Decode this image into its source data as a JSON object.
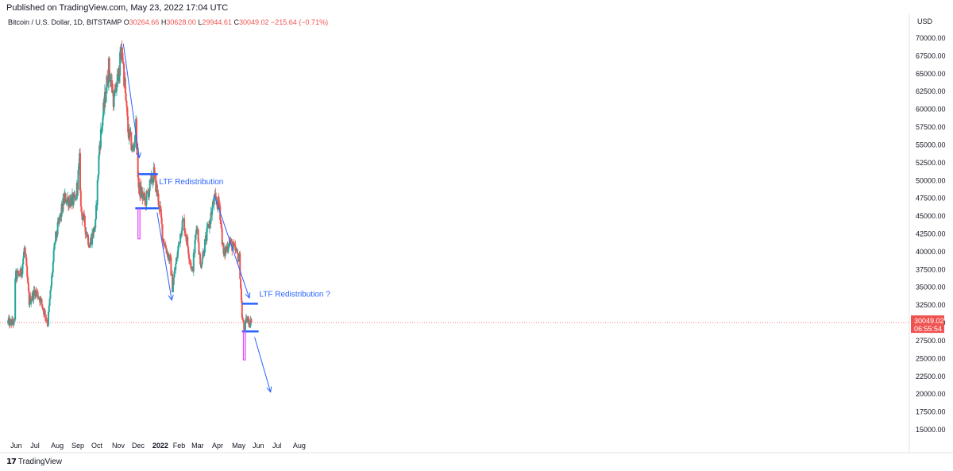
{
  "header": {
    "published": "Published on TradingView.com, May 23, 2022 17:04 UTC",
    "symbol": "Bitcoin / U.S. Dollar, 1D, BITSTAMP",
    "open_label": "O",
    "open": "30264.66",
    "high_label": "H",
    "high": "30628.00",
    "low_label": "L",
    "low": "29944.61",
    "close_label": "C",
    "close": "30049.02",
    "change": "−215.64 (−0.71%)"
  },
  "currency": "USD",
  "footer": {
    "brand": "TradingView"
  },
  "colors": {
    "up": "#26a69a",
    "down": "#ef5350",
    "annotation": "#2962ff",
    "box": "#e040fb",
    "price_badge": "#ef5350"
  },
  "chart_data": {
    "type": "candlestick",
    "x_labels": [
      "Jun",
      "Jul",
      "Aug",
      "Sep",
      "Oct",
      "Nov",
      "Dec",
      "2022",
      "Feb",
      "Mar",
      "Apr",
      "May",
      "Jun",
      "Jul",
      "Aug"
    ],
    "y_ticks": [
      "70000.00",
      "67500.00",
      "65000.00",
      "62500.00",
      "60000.00",
      "57500.00",
      "55000.00",
      "52500.00",
      "50000.00",
      "47500.00",
      "45000.00",
      "42500.00",
      "40000.00",
      "37500.00",
      "35000.00",
      "32500.00",
      "30000.00",
      "27500.00",
      "25000.00",
      "22500.00",
      "20000.00",
      "17500.00",
      "15000.00"
    ],
    "ylim": [
      13500,
      70500
    ],
    "last_price": "30049.02",
    "countdown": "06:55:54",
    "anchors": [
      [
        "2021-06-01",
        36500
      ],
      [
        "2021-06-10",
        37000
      ],
      [
        "2021-06-15",
        40500
      ],
      [
        "2021-06-22",
        33000
      ],
      [
        "2021-07-01",
        34500
      ],
      [
        "2021-07-08",
        33500
      ],
      [
        "2021-07-20",
        30000
      ],
      [
        "2021-07-31",
        41500
      ],
      [
        "2021-08-14",
        47500
      ],
      [
        "2021-08-31",
        47000
      ],
      [
        "2021-09-06",
        52700
      ],
      [
        "2021-09-08",
        46000
      ],
      [
        "2021-09-21",
        41000
      ],
      [
        "2021-09-30",
        43800
      ],
      [
        "2021-10-06",
        55000
      ],
      [
        "2021-10-20",
        66000
      ],
      [
        "2021-10-28",
        61000
      ],
      [
        "2021-11-09",
        68500
      ],
      [
        "2021-11-18",
        57000
      ],
      [
        "2021-11-26",
        54000
      ],
      [
        "2021-11-30",
        57800
      ],
      [
        "2021-12-04",
        49000
      ],
      [
        "2021-12-14",
        47000
      ],
      [
        "2021-12-27",
        51000
      ],
      [
        "2022-01-05",
        46000
      ],
      [
        "2022-01-10",
        41800
      ],
      [
        "2022-01-21",
        38500
      ],
      [
        "2022-01-24",
        35000
      ],
      [
        "2022-02-07",
        43800
      ],
      [
        "2022-02-10",
        44200
      ],
      [
        "2022-02-23",
        37000
      ],
      [
        "2022-03-02",
        44200
      ],
      [
        "2022-03-07",
        38000
      ],
      [
        "2022-03-28",
        47300
      ],
      [
        "2022-04-05",
        46500
      ],
      [
        "2022-04-11",
        39500
      ],
      [
        "2022-04-20",
        41500
      ],
      [
        "2022-05-05",
        39000
      ],
      [
        "2022-05-09",
        31000
      ],
      [
        "2022-05-12",
        29000
      ],
      [
        "2022-05-16",
        30500
      ],
      [
        "2022-05-23",
        30049
      ]
    ],
    "trend_arrows": [
      {
        "from": [
          "2021-11-11",
          69200
        ],
        "to": [
          "2021-12-05",
          53200
        ]
      },
      {
        "from": [
          "2022-01-01",
          45500
        ],
        "to": [
          "2022-01-23",
          33200
        ]
      },
      {
        "from": [
          "2022-03-28",
          48000
        ],
        "to": [
          "2022-05-20",
          33500
        ]
      },
      {
        "from": [
          "2022-05-28",
          28000
        ],
        "to": [
          "2022-06-21",
          20300
        ]
      }
    ],
    "levels": [
      {
        "from": "2021-12-04",
        "to": "2022-01-02",
        "price": 50900
      },
      {
        "from": "2021-11-29",
        "to": "2022-01-03",
        "price": 46100
      },
      {
        "from": "2022-05-09",
        "to": "2022-06-02",
        "price": 32700
      },
      {
        "from": "2022-05-09",
        "to": "2022-06-03",
        "price": 28800
      }
    ],
    "boxes": [
      {
        "from": "2021-12-03",
        "to": "2021-12-05",
        "top": 46000,
        "bottom": 41800
      },
      {
        "from": "2022-05-11",
        "to": "2022-05-13",
        "top": 28800,
        "bottom": 24800
      }
    ],
    "annotations": [
      {
        "text": "LTF Redistribution",
        "at": [
          "2022-01-04",
          49500
        ]
      },
      {
        "text": "LTF Redistribution ?",
        "at": [
          "2022-06-04",
          33700
        ]
      }
    ]
  }
}
